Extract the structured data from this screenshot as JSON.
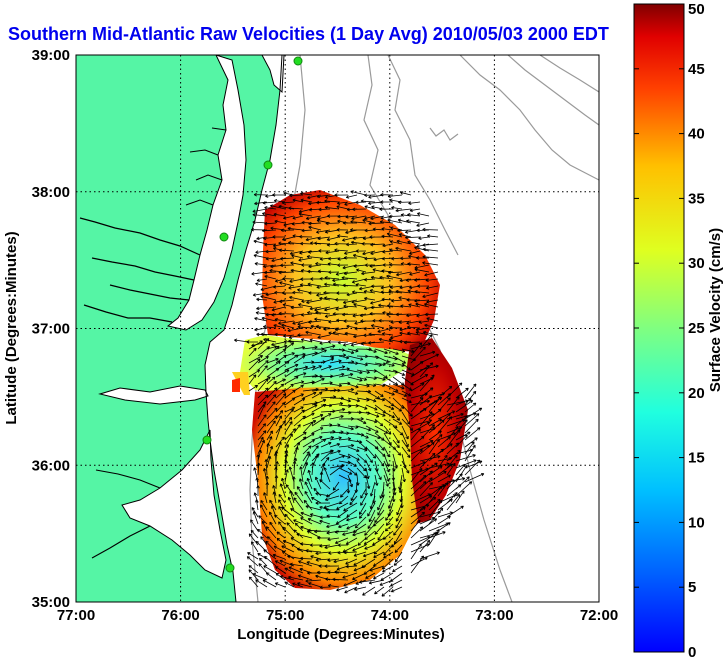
{
  "title": "Southern Mid-Atlantic Raw Velocities (1 Day Avg) 2010/05/03 2000 EDT",
  "xlabel": "Longitude (Degrees:Minutes)",
  "ylabel": "Latitude (Degrees:Minutes)",
  "colorbar_label": "Surface Velocity (cm/s)",
  "colors": {
    "title": "#0000ee",
    "land": "#55f5a5",
    "coast": "#000000",
    "bathymetry": "#9a9a9a",
    "station": "#22dd22"
  },
  "map_data": {
    "type": "map",
    "x_range": [
      -77,
      -72
    ],
    "y_range": [
      35,
      39
    ],
    "x_ticks": [
      {
        "value": -77,
        "label": "77:00"
      },
      {
        "value": -76,
        "label": "76:00"
      },
      {
        "value": -75,
        "label": "75:00"
      },
      {
        "value": -74,
        "label": "74:00"
      },
      {
        "value": -73,
        "label": "73:00"
      },
      {
        "value": -72,
        "label": "72:00"
      }
    ],
    "y_ticks": [
      {
        "value": 35,
        "label": "35:00"
      },
      {
        "value": 36,
        "label": "36:00"
      },
      {
        "value": 37,
        "label": "37:00"
      },
      {
        "value": 38,
        "label": "38:00"
      },
      {
        "value": 39,
        "label": "39:00"
      }
    ],
    "grid": true,
    "colormap": "jet",
    "color_range": [
      0,
      50
    ],
    "colorbar_ticks": [
      "0",
      "5",
      "10",
      "15",
      "20",
      "25",
      "30",
      "35",
      "40",
      "45",
      "50"
    ]
  }
}
